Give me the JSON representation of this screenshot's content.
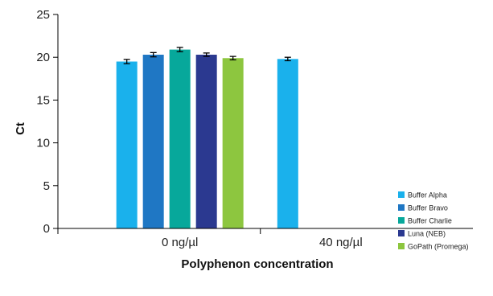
{
  "chart_data": {
    "type": "bar",
    "title": "",
    "xlabel": "Polyphenon concentration",
    "ylabel": "Ct",
    "ylim": [
      0,
      25
    ],
    "yticks": [
      0,
      5,
      10,
      15,
      20,
      25
    ],
    "categories": [
      "0 ng/µl",
      "40 ng/µl"
    ],
    "series": [
      {
        "name": "Buffer Alpha",
        "color": "#1ab1ec",
        "values": [
          19.5,
          19.8
        ],
        "errors": [
          0.25,
          0.2
        ]
      },
      {
        "name": "Buffer Bravo",
        "color": "#1f77c4",
        "values": [
          20.3,
          null
        ],
        "errors": [
          0.25,
          null
        ]
      },
      {
        "name": "Buffer Charlie",
        "color": "#07a89b",
        "values": [
          20.9,
          null
        ],
        "errors": [
          0.25,
          null
        ]
      },
      {
        "name": "Luna (NEB)",
        "color": "#2b3990",
        "values": [
          20.3,
          null
        ],
        "errors": [
          0.2,
          null
        ]
      },
      {
        "name": "GoPath (Promega)",
        "color": "#8dc63f",
        "values": [
          19.9,
          null
        ],
        "errors": [
          0.2,
          null
        ]
      }
    ],
    "grid": false,
    "legend_position": "bottom-right"
  }
}
